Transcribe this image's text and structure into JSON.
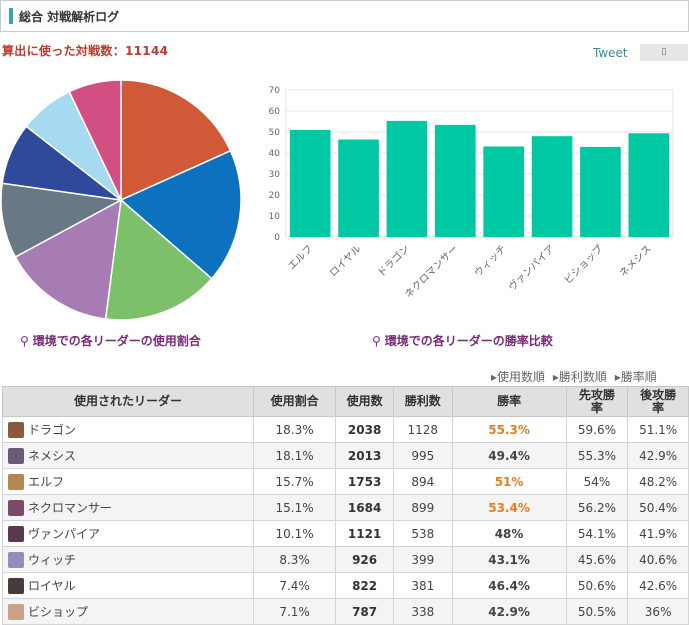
{
  "header": {
    "title": "総合 対戦解析ログ"
  },
  "battle_count_label": "算出に使った対戦数：11144",
  "social": {
    "tweet": "Tweet",
    "fb_icon": "page-icon"
  },
  "pie_caption": "環境での各リーダーの使用割合",
  "bar_caption": "環境での各リーダーの勝率比較",
  "sort_links": [
    "▸使用数順",
    "▸勝利数順",
    "▸勝率順"
  ],
  "table": {
    "headers": [
      "使用されたリーダー",
      "使用割合",
      "使用数",
      "勝利数",
      "勝率",
      "先攻勝率",
      "後攻勝率"
    ],
    "rows": [
      {
        "leader": "ドラゴン",
        "share": "18.3%",
        "used": "2038",
        "wins": "1128",
        "rate": "55.3%",
        "first": "59.6%",
        "second": "51.1%",
        "highlight": true,
        "avatar": "#8a5a3a"
      },
      {
        "leader": "ネメシス",
        "share": "18.1%",
        "used": "2013",
        "wins": "995",
        "rate": "49.4%",
        "first": "55.3%",
        "second": "42.9%",
        "highlight": false,
        "avatar": "#6a5a7a"
      },
      {
        "leader": "エルフ",
        "share": "15.7%",
        "used": "1753",
        "wins": "894",
        "rate": "51%",
        "first": "54%",
        "second": "48.2%",
        "highlight": true,
        "avatar": "#b08850"
      },
      {
        "leader": "ネクロマンサー",
        "share": "15.1%",
        "used": "1684",
        "wins": "899",
        "rate": "53.4%",
        "first": "56.2%",
        "second": "50.4%",
        "highlight": true,
        "avatar": "#7a4a6a"
      },
      {
        "leader": "ヴァンパイア",
        "share": "10.1%",
        "used": "1121",
        "wins": "538",
        "rate": "48%",
        "first": "54.1%",
        "second": "41.9%",
        "highlight": false,
        "avatar": "#5a3a4a"
      },
      {
        "leader": "ウィッチ",
        "share": "8.3%",
        "used": "926",
        "wins": "399",
        "rate": "43.1%",
        "first": "45.6%",
        "second": "40.6%",
        "highlight": false,
        "avatar": "#9a8aba"
      },
      {
        "leader": "ロイヤル",
        "share": "7.4%",
        "used": "822",
        "wins": "381",
        "rate": "46.4%",
        "first": "50.6%",
        "second": "42.6%",
        "highlight": false,
        "avatar": "#4a3a3a"
      },
      {
        "leader": "ビショップ",
        "share": "7.1%",
        "used": "787",
        "wins": "338",
        "rate": "42.9%",
        "first": "50.5%",
        "second": "36%",
        "highlight": false,
        "avatar": "#caa08a"
      }
    ]
  },
  "chart_data": [
    {
      "type": "pie",
      "categories": [
        "ドラゴン",
        "ネメシス",
        "エルフ",
        "ネクロマンサー",
        "ヴァンパイア",
        "ウィッチ",
        "ロイヤル",
        "ビショップ"
      ],
      "values": [
        18.3,
        18.1,
        15.7,
        15.1,
        10.1,
        8.3,
        7.4,
        7.1
      ],
      "colors": [
        "#d05a38",
        "#0c72bf",
        "#7cc16a",
        "#a77cb4",
        "#697885",
        "#2f4a9a",
        "#a6daf0",
        "#d24f83"
      ]
    },
    {
      "type": "bar",
      "categories": [
        "エルフ",
        "ロイヤル",
        "ドラゴン",
        "ネクロマンサー",
        "ウィッチ",
        "ヴァンパイア",
        "ビショップ",
        "ネメシス"
      ],
      "values": [
        51,
        46.4,
        55.3,
        53.4,
        43.1,
        48,
        42.9,
        49.4
      ],
      "ylim": [
        0,
        70
      ],
      "yticks": [
        "0",
        "10",
        "20",
        "30",
        "40",
        "50",
        "60",
        "70"
      ],
      "bar_color": "#00c8a2",
      "grid": true
    }
  ]
}
